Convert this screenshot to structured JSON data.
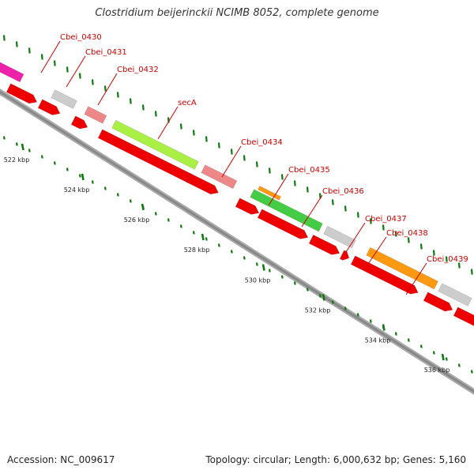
{
  "title": "Clostridium beijerinckii NCIMB 8052, complete genome",
  "accession": "Accession: NC_009617",
  "stats": "Topology: circular; Length: 6,000,632 bp; Genes: 5,160",
  "colors": {
    "backbone": "#999999",
    "cds": "#ee0000",
    "tick": "#117711",
    "label": "#cc0000",
    "gray_gene": "#cccccc",
    "pink_gene": "#ee8888",
    "magenta_gene": "#ee22aa",
    "lime_gene": "#aaf044",
    "green_gene": "#44cc44",
    "orange_gene": "#ff9911"
  },
  "scale_labels": [
    "522 kbp",
    "524 kbp",
    "526 kbp",
    "528 kbp",
    "530 kbp",
    "532 kbp",
    "534 kbp",
    "536 kbp"
  ],
  "genes": [
    {
      "name": "Cbei_0430",
      "color": "gray_gene"
    },
    {
      "name": "Cbei_0431",
      "color": "pink_gene"
    },
    {
      "name": "Cbei_0432",
      "color": "pink_gene"
    },
    {
      "name": "secA",
      "color": "lime_gene"
    },
    {
      "name": "Cbei_0434",
      "color": "pink_gene"
    },
    {
      "name": "Cbei_0435",
      "color": "orange_gene"
    },
    {
      "name": "Cbei_0436",
      "color": "green_gene"
    },
    {
      "name": "Cbei_0437",
      "color": "gray_gene"
    },
    {
      "name": "Cbei_0438",
      "color": "orange_gene"
    },
    {
      "name": "Cbei_0439",
      "color": "gray_gene"
    }
  ]
}
